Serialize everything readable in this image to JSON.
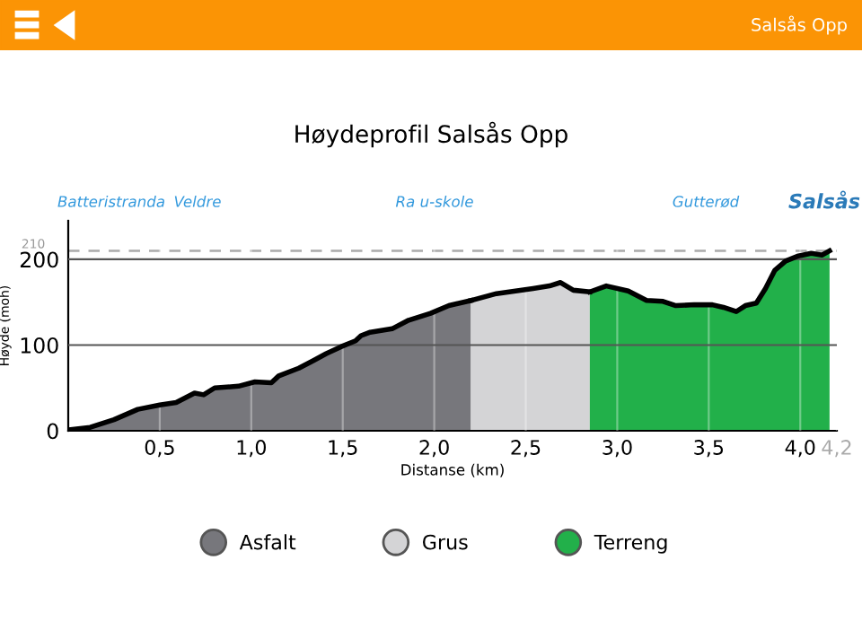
{
  "chart_data": {
    "type": "area",
    "title": "Høydeprofil Salsås Opp",
    "xlabel": "Distanse (km)",
    "ylabel": "Høyde (moh)",
    "annotations": [
      "Salsås Opp",
      "Batteristranda",
      "Veldre",
      "Ra u-skole",
      "Gutterød",
      "Salsås"
    ],
    "series": [
      {
        "name": "Asfalt",
        "color": "#77777c",
        "x": [
          0,
          0.12,
          0.25,
          0.38,
          0.5,
          0.59,
          0.69,
          0.74,
          0.8,
          0.93,
          1.02,
          1.11,
          1.15,
          1.26,
          1.34,
          1.41,
          1.49,
          1.57,
          1.6,
          1.65,
          1.77,
          1.86,
          1.98,
          2.08,
          2.2
        ],
        "values": [
          1,
          4,
          13,
          25,
          30,
          33,
          44,
          42,
          50,
          52,
          57,
          56,
          64,
          73,
          82,
          90,
          98,
          105,
          111,
          115,
          119,
          129,
          137,
          146,
          152
        ]
      },
      {
        "name": "Grus",
        "color": "#d4d4d6",
        "x": [
          2.2,
          2.34,
          2.54,
          2.63,
          2.69,
          2.76,
          2.85
        ],
        "values": [
          152,
          160,
          166,
          169,
          173,
          164,
          162
        ]
      },
      {
        "name": "Terreng",
        "color": "#22b04a",
        "x": [
          2.85,
          2.94,
          3.06,
          3.16,
          3.25,
          3.32,
          3.42,
          3.52,
          3.58,
          3.65,
          3.7,
          3.76,
          3.81,
          3.86,
          3.92,
          3.99,
          4.06,
          4.12,
          4.16
        ],
        "values": [
          162,
          169,
          163,
          152,
          151,
          146,
          147,
          147,
          144,
          139,
          146,
          149,
          166,
          187,
          198,
          204,
          207,
          205,
          210
        ]
      }
    ],
    "xlim": [
      0,
      4.2
    ],
    "xticks": [
      {
        "value": 0.5,
        "label": "0,5"
      },
      {
        "value": 1.0,
        "label": "1,0"
      },
      {
        "value": 1.5,
        "label": "1,5"
      },
      {
        "value": 2.0,
        "label": "2,0"
      },
      {
        "value": 2.5,
        "label": "2,5"
      },
      {
        "value": 3.0,
        "label": "3,0"
      },
      {
        "value": 3.5,
        "label": "3,5"
      },
      {
        "value": 4.0,
        "label": "4,0"
      },
      {
        "value": 4.2,
        "label": "4,2"
      }
    ],
    "ylim": [
      0,
      245
    ],
    "yticks": [
      0,
      100,
      200
    ],
    "ref_lines": [
      {
        "axis": "y",
        "value": 210,
        "label": "210",
        "color": "#aaaaaa",
        "line_style": "dashed"
      }
    ],
    "grid": true,
    "legend": "bottom"
  }
}
